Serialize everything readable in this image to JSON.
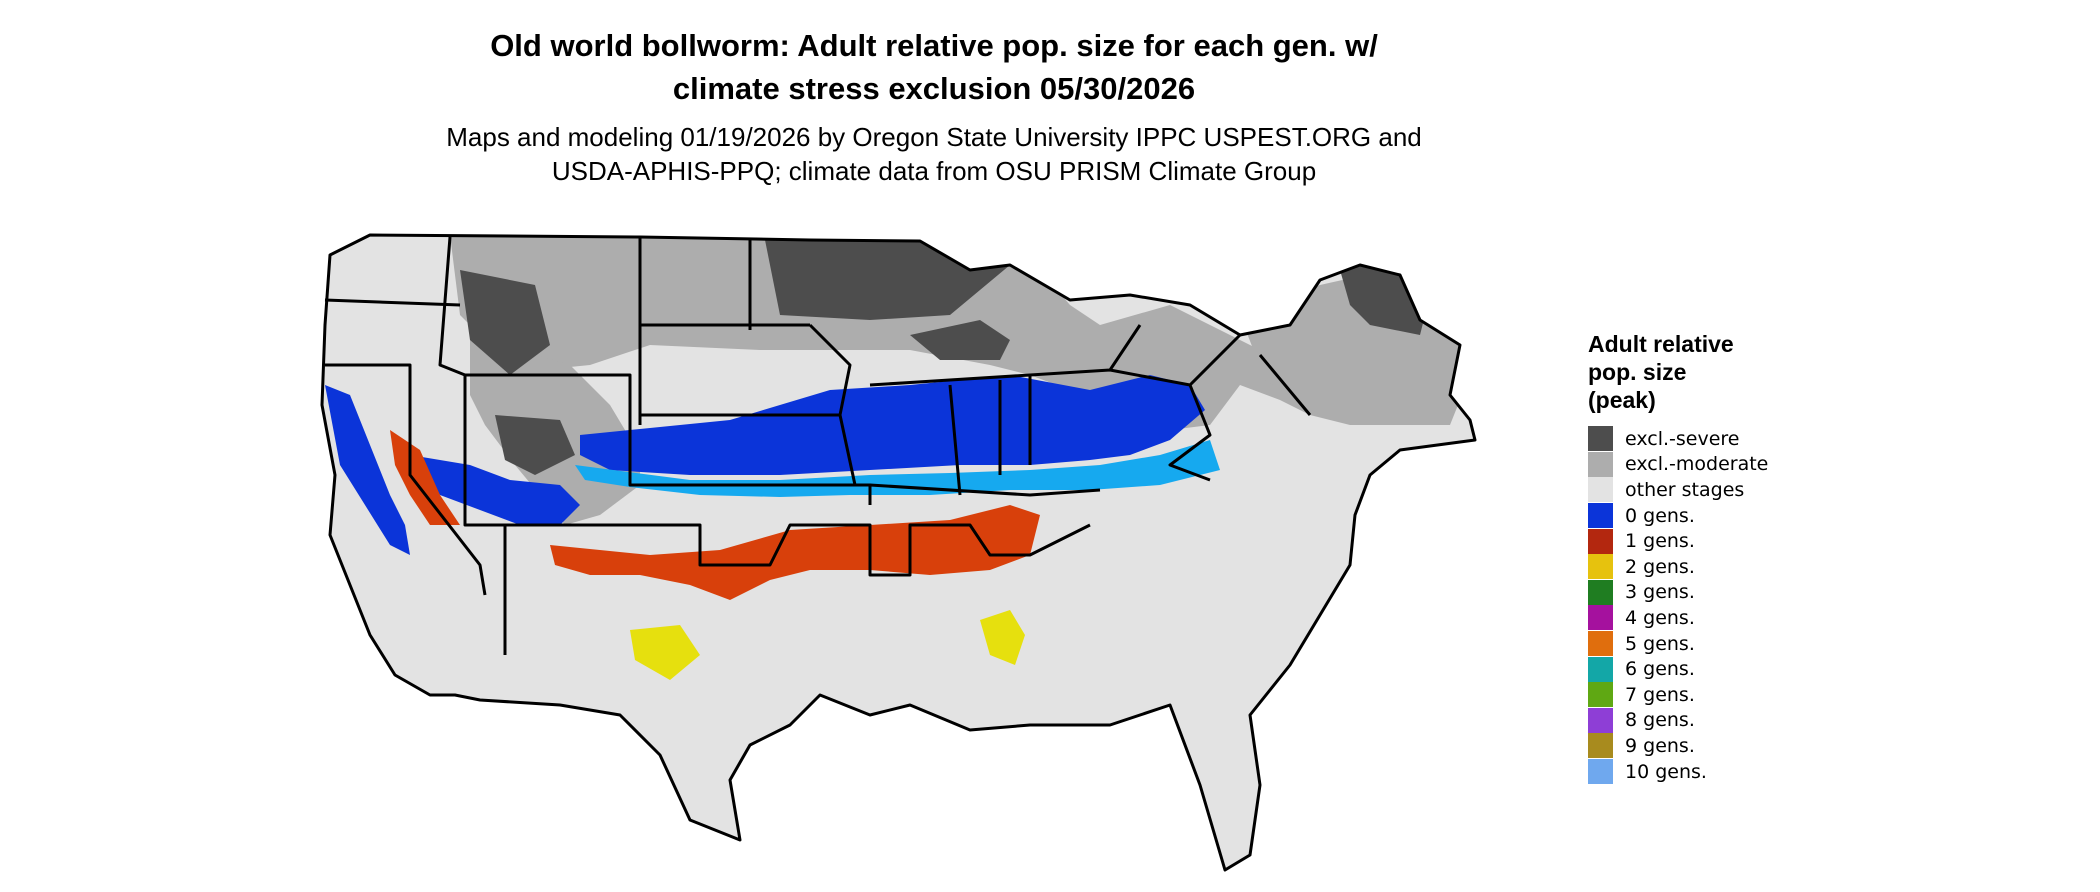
{
  "title": {
    "line1": "Old world bollworm: Adult relative pop. size for each gen. w/",
    "line2": "climate stress exclusion 05/30/2026"
  },
  "subtitle": {
    "line1": "Maps and modeling 01/19/2026 by Oregon State University IPPC USPEST.ORG and",
    "line2": "USDA-APHIS-PPQ; climate data from OSU PRISM Climate Group"
  },
  "map": {
    "region": "Contiguous United States",
    "variable": "Adult relative pop. size",
    "date": "05/30/2026"
  },
  "legend": {
    "title_line1": "Adult relative",
    "title_line2": "pop. size",
    "title_line3": "(peak)",
    "items": [
      {
        "label": "excl.-severe",
        "color": "#4d4d4d"
      },
      {
        "label": "excl.-moderate",
        "color": "#adadad"
      },
      {
        "label": "other stages",
        "color": "#e3e3e3"
      },
      {
        "label": "0 gens.",
        "color": "#0b34d9"
      },
      {
        "label": "1 gens.",
        "color": "#b3270f"
      },
      {
        "label": "2 gens.",
        "color": "#e6c20e"
      },
      {
        "label": "3 gens.",
        "color": "#1f7d21"
      },
      {
        "label": "4 gens.",
        "color": "#a5119e"
      },
      {
        "label": "5 gens.",
        "color": "#e06e0d"
      },
      {
        "label": "6 gens.",
        "color": "#13a7a7"
      },
      {
        "label": "7 gens.",
        "color": "#5fa813"
      },
      {
        "label": "8 gens.",
        "color": "#8e3ed6"
      },
      {
        "label": "9 gens.",
        "color": "#a88b1e"
      },
      {
        "label": "10 gens.",
        "color": "#6fa8ee"
      }
    ]
  }
}
